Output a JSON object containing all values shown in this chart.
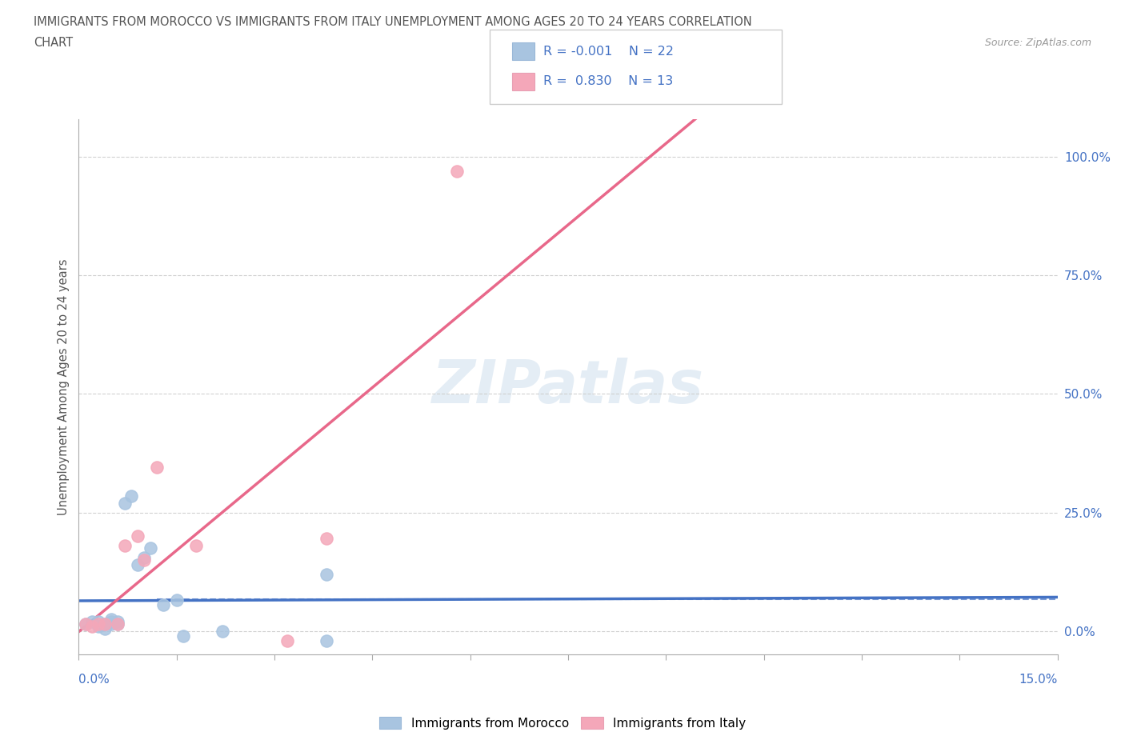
{
  "title_line1": "IMMIGRANTS FROM MOROCCO VS IMMIGRANTS FROM ITALY UNEMPLOYMENT AMONG AGES 20 TO 24 YEARS CORRELATION",
  "title_line2": "CHART",
  "source": "Source: ZipAtlas.com",
  "ylabel": "Unemployment Among Ages 20 to 24 years",
  "ytick_labels": [
    "0.0%",
    "25.0%",
    "50.0%",
    "75.0%",
    "100.0%"
  ],
  "ytick_values": [
    0.0,
    0.25,
    0.5,
    0.75,
    1.0
  ],
  "xlim": [
    0.0,
    0.15
  ],
  "ylim": [
    -0.05,
    1.08
  ],
  "watermark": "ZIPatlas",
  "color_morocco": "#a8c4e0",
  "color_italy": "#f4a7b9",
  "color_trendline_morocco": "#4472c4",
  "color_trendline_italy": "#e8688a",
  "background_color": "#ffffff",
  "grid_color": "#d0d0d0",
  "title_color": "#555555",
  "axis_label_color": "#4472c4",
  "morocco_x": [
    0.001,
    0.002,
    0.003,
    0.003,
    0.004,
    0.004,
    0.005,
    0.005,
    0.005,
    0.006,
    0.006,
    0.007,
    0.008,
    0.009,
    0.01,
    0.011,
    0.013,
    0.015,
    0.016,
    0.022,
    0.038,
    0.038
  ],
  "morocco_y": [
    0.015,
    0.02,
    0.01,
    0.02,
    0.005,
    0.015,
    0.015,
    0.02,
    0.025,
    0.015,
    0.02,
    0.27,
    0.285,
    0.14,
    0.155,
    0.175,
    0.055,
    0.065,
    -0.01,
    0.0,
    -0.02,
    0.12
  ],
  "italy_x": [
    0.001,
    0.002,
    0.003,
    0.004,
    0.006,
    0.007,
    0.009,
    0.01,
    0.012,
    0.018,
    0.032,
    0.038,
    0.058
  ],
  "italy_y": [
    0.015,
    0.01,
    0.015,
    0.015,
    0.015,
    0.18,
    0.2,
    0.15,
    0.345,
    0.18,
    -0.02,
    0.195,
    0.97
  ],
  "xtick_count": 11,
  "legend_r1": "R = -0.001",
  "legend_n1": "N = 22",
  "legend_r2": "R =  0.830",
  "legend_n2": "N = 13"
}
